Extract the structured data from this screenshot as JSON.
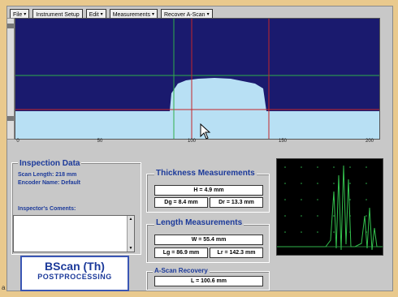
{
  "menu": {
    "items": [
      {
        "label": "File",
        "dropdown": true
      },
      {
        "label": "Instrument Setup",
        "dropdown": false
      },
      {
        "label": "Edit",
        "dropdown": true
      },
      {
        "label": "Measurements",
        "dropdown": true
      },
      {
        "label": "Recover A-Scan",
        "dropdown": true
      }
    ]
  },
  "bscan": {
    "axis_ticks": [
      "0",
      "50",
      "100",
      "150",
      "200"
    ],
    "colors": {
      "background": "#1a1a6e",
      "fill": "#b8e0f4",
      "cursor_green": "#2fae4a",
      "cursor_red": "#c4262a"
    }
  },
  "inspection": {
    "title": "Inspection Data",
    "scan_length": "Scan Length: 218 mm",
    "encoder_name": "Encoder Name: Default",
    "comments_label": "Inspector's Coments:"
  },
  "thickness": {
    "title": "Thickness Measurements",
    "h": "H = 4.9 mm",
    "dg": "Dg = 8.4 mm",
    "dr": "Dr = 13.3 mm"
  },
  "length": {
    "title": "Length Measurements",
    "w": "W = 55.4 mm",
    "lg": "Lg = 86.9 mm",
    "lr": "Lr = 142.3 mm"
  },
  "ascan_recovery": {
    "title": "A-Scan Recovery",
    "l": "L = 100.6 mm"
  },
  "logo": {
    "line1": "BScan (Th)",
    "line2": "POSTPROCESSING"
  },
  "stray_label": "a"
}
